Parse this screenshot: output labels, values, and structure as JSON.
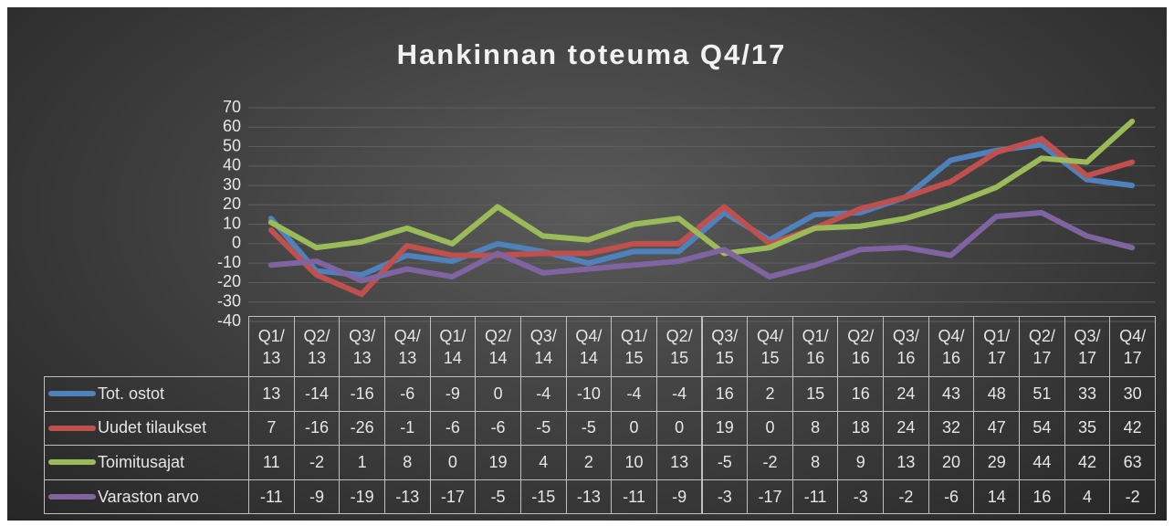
{
  "chart_data": {
    "type": "line",
    "title": "Hankinnan toteuma Q4/17",
    "categories": [
      "Q1/13",
      "Q2/13",
      "Q3/13",
      "Q4/13",
      "Q1/14",
      "Q2/14",
      "Q3/14",
      "Q4/14",
      "Q1/15",
      "Q2/15",
      "Q3/15",
      "Q4/15",
      "Q1/16",
      "Q2/16",
      "Q3/16",
      "Q4/16",
      "Q1/17",
      "Q2/17",
      "Q3/17",
      "Q4/17"
    ],
    "series": [
      {
        "name": "Tot. ostot",
        "color": "#4f81bd",
        "values": [
          13,
          -14,
          -16,
          -6,
          -9,
          0,
          -4,
          -10,
          -4,
          -4,
          16,
          2,
          15,
          16,
          24,
          43,
          48,
          51,
          33,
          30
        ]
      },
      {
        "name": "Uudet tilaukset",
        "color": "#c0504d",
        "values": [
          7,
          -16,
          -26,
          -1,
          -6,
          -6,
          -5,
          -5,
          0,
          0,
          19,
          0,
          8,
          18,
          24,
          32,
          47,
          54,
          35,
          42
        ]
      },
      {
        "name": "Toimitusajat",
        "color": "#9bbb59",
        "values": [
          11,
          -2,
          1,
          8,
          0,
          19,
          4,
          2,
          10,
          13,
          -5,
          -2,
          8,
          9,
          13,
          20,
          29,
          44,
          42,
          63
        ]
      },
      {
        "name": "Varaston arvo",
        "color": "#8064a2",
        "values": [
          -11,
          -9,
          -19,
          -13,
          -17,
          -5,
          -15,
          -13,
          -11,
          -9,
          -3,
          -17,
          -11,
          -3,
          -2,
          -6,
          14,
          16,
          4,
          -2
        ]
      }
    ],
    "ylim": [
      -40,
      70
    ],
    "yticks": [
      -40,
      -30,
      -20,
      -10,
      0,
      10,
      20,
      30,
      40,
      50,
      60,
      70
    ],
    "grid": true
  }
}
